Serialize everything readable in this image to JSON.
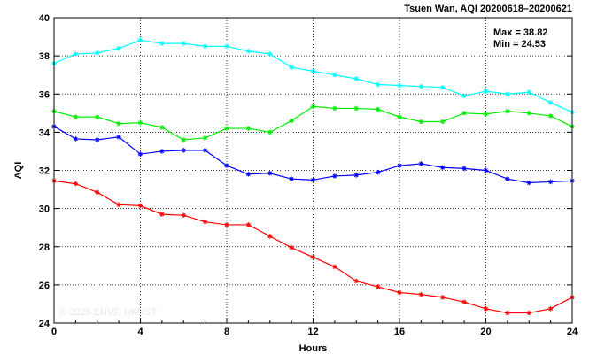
{
  "chart_data": {
    "type": "line",
    "title": "Tsuen Wan, AQI 20200618–20200621",
    "stats": {
      "max": "Max = 38.82",
      "min": "Min = 24.53"
    },
    "watermark": "© 2025  ENVF, HKUST",
    "xlabel": "Hours",
    "ylabel": "AQI",
    "xlim": [
      0,
      24
    ],
    "ylim": [
      24,
      40
    ],
    "xticks": [
      0,
      4,
      8,
      12,
      16,
      20,
      24
    ],
    "yticks": [
      24,
      26,
      28,
      30,
      32,
      34,
      36,
      38,
      40
    ],
    "grid": true,
    "x": [
      0,
      1,
      2,
      3,
      4,
      5,
      6,
      7,
      8,
      9,
      10,
      11,
      12,
      13,
      14,
      15,
      16,
      17,
      18,
      19,
      20,
      21,
      22,
      23,
      24
    ],
    "series": [
      {
        "color": "#00ffff",
        "values": [
          37.6,
          38.1,
          38.15,
          38.4,
          38.82,
          38.65,
          38.65,
          38.5,
          38.5,
          38.25,
          38.1,
          37.4,
          37.2,
          37.0,
          36.8,
          36.5,
          36.45,
          36.4,
          36.35,
          35.9,
          36.15,
          36.0,
          36.1,
          35.55,
          35.05
        ]
      },
      {
        "color": "#00ee00",
        "values": [
          35.1,
          34.8,
          34.8,
          34.45,
          34.5,
          34.25,
          33.6,
          33.7,
          34.2,
          34.2,
          34.0,
          34.6,
          35.35,
          35.25,
          35.25,
          35.2,
          34.8,
          34.55,
          34.55,
          35.0,
          34.95,
          35.1,
          35.0,
          34.85,
          34.3
        ]
      },
      {
        "color": "#0000ff",
        "values": [
          34.3,
          33.65,
          33.6,
          33.75,
          32.85,
          33.0,
          33.05,
          33.05,
          32.25,
          31.8,
          31.85,
          31.55,
          31.5,
          31.7,
          31.75,
          31.9,
          32.25,
          32.35,
          32.15,
          32.1,
          32.0,
          31.55,
          31.35,
          31.4,
          31.45
        ]
      },
      {
        "color": "#ff0000",
        "values": [
          31.45,
          31.3,
          30.85,
          30.2,
          30.15,
          29.7,
          29.65,
          29.3,
          29.15,
          29.15,
          28.55,
          27.95,
          27.45,
          26.95,
          26.2,
          25.9,
          25.6,
          25.5,
          25.35,
          25.1,
          24.75,
          24.53,
          24.53,
          24.75,
          25.35
        ]
      }
    ]
  }
}
